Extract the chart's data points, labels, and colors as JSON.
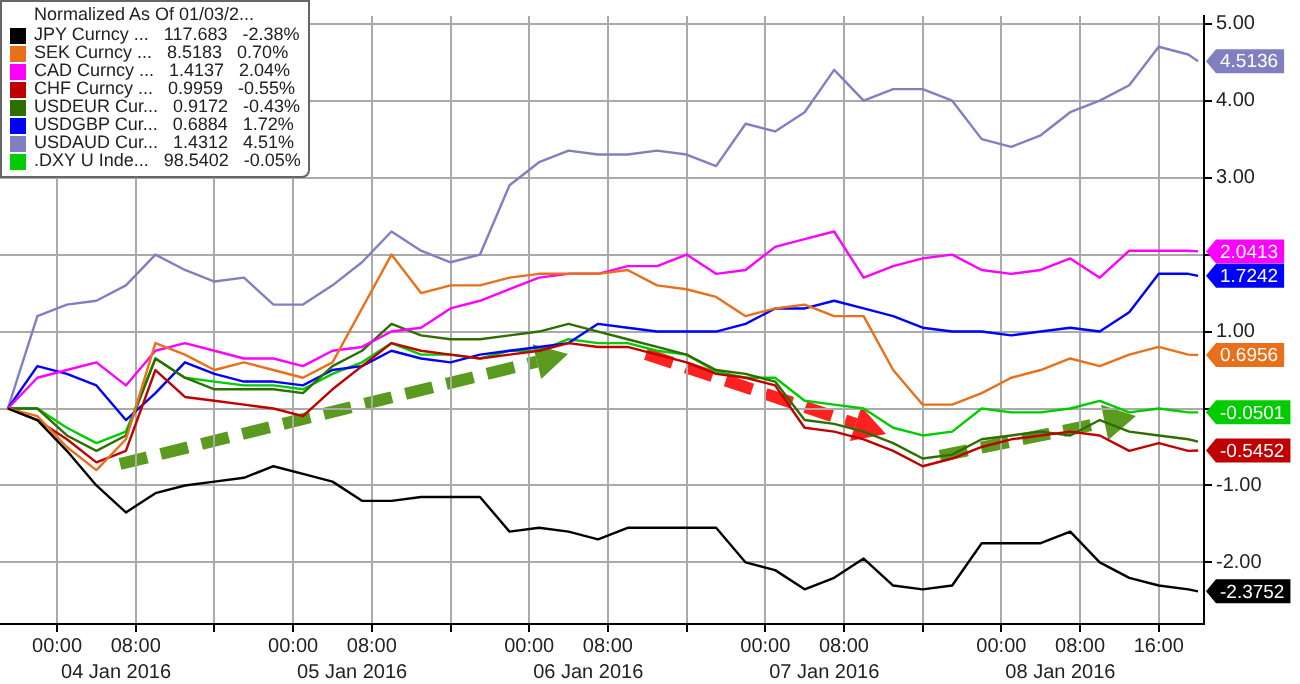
{
  "chart_data": {
    "type": "line",
    "legend_title": "Normalized As Of 01/03/2...",
    "legend": "top left",
    "grid": true,
    "marker": "none",
    "line_style": "solid",
    "x": [
      "2016-01-03T19:00",
      "2016-01-03T22:00",
      "2016-01-04T01:00",
      "2016-01-04T04:00",
      "2016-01-04T07:00",
      "2016-01-04T10:00",
      "2016-01-04T13:00",
      "2016-01-04T16:00",
      "2016-01-04T19:00",
      "2016-01-04T22:00",
      "2016-01-05T01:00",
      "2016-01-05T04:00",
      "2016-01-05T07:00",
      "2016-01-05T10:00",
      "2016-01-05T13:00",
      "2016-01-05T16:00",
      "2016-01-05T19:00",
      "2016-01-05T22:00",
      "2016-01-06T01:00",
      "2016-01-06T04:00",
      "2016-01-06T07:00",
      "2016-01-06T10:00",
      "2016-01-06T13:00",
      "2016-01-06T16:00",
      "2016-01-06T19:00",
      "2016-01-06T22:00",
      "2016-01-07T01:00",
      "2016-01-07T04:00",
      "2016-01-07T07:00",
      "2016-01-07T10:00",
      "2016-01-07T13:00",
      "2016-01-07T16:00",
      "2016-01-07T19:00",
      "2016-01-07T22:00",
      "2016-01-08T01:00",
      "2016-01-08T04:00",
      "2016-01-08T07:00",
      "2016-01-08T10:00",
      "2016-01-08T13:00",
      "2016-01-08T16:00",
      "2016-01-08T19:00",
      "2016-01-08T20:00"
    ],
    "xlim": [
      "2016-01-03T18:12",
      "2016-01-08T20:36"
    ],
    "xticks": [
      {
        "value": "2016-01-04T00:00",
        "label": "00:00"
      },
      {
        "value": "2016-01-04T08:00",
        "label": "08:00"
      },
      {
        "value": "2016-01-04T16:00",
        "label": null
      },
      {
        "value": "2016-01-05T00:00",
        "label": "00:00"
      },
      {
        "value": "2016-01-05T08:00",
        "label": "08:00"
      },
      {
        "value": "2016-01-05T16:00",
        "label": null
      },
      {
        "value": "2016-01-06T00:00",
        "label": "00:00"
      },
      {
        "value": "2016-01-06T08:00",
        "label": "08:00"
      },
      {
        "value": "2016-01-06T16:00",
        "label": null
      },
      {
        "value": "2016-01-07T00:00",
        "label": "00:00"
      },
      {
        "value": "2016-01-07T08:00",
        "label": "08:00"
      },
      {
        "value": "2016-01-07T16:00",
        "label": null
      },
      {
        "value": "2016-01-08T00:00",
        "label": "00:00"
      },
      {
        "value": "2016-01-08T08:00",
        "label": "08:00"
      },
      {
        "value": "2016-01-08T16:00",
        "label": "16:00"
      }
    ],
    "x2lim": [
      "2016-01-03T18:12",
      "2016-01-08T20:36"
    ],
    "x2ticks": [
      {
        "value": "2016-01-04T06:00",
        "label": "04 Jan 2016"
      },
      {
        "value": "2016-01-05T06:00",
        "label": "05 Jan 2016"
      },
      {
        "value": "2016-01-06T06:00",
        "label": "06 Jan 2016"
      },
      {
        "value": "2016-01-07T06:00",
        "label": "07 Jan 2016"
      },
      {
        "value": "2016-01-08T06:00",
        "label": "08 Jan 2016"
      }
    ],
    "ylim": [
      -2.8,
      5.1
    ],
    "yticks": [
      {
        "value": 5,
        "label": "5.00"
      },
      {
        "value": 4,
        "label": "4.00"
      },
      {
        "value": 3,
        "label": "3.00"
      },
      {
        "value": 2,
        "label": null
      },
      {
        "value": 1,
        "label": "1.00"
      },
      {
        "value": 0,
        "label": null
      },
      {
        "value": -1,
        "label": "-1.00"
      },
      {
        "value": -2,
        "label": "-2.00"
      }
    ],
    "series": [
      {
        "name": "JPY Curncy ...   117.683   -2.38%",
        "color": "#000000",
        "values": [
          0.0,
          -0.15,
          -0.55,
          -1.0,
          -1.35,
          -1.1,
          -1.0,
          -0.95,
          -0.9,
          -0.75,
          -0.85,
          -0.95,
          -1.2,
          -1.2,
          -1.15,
          -1.15,
          -1.15,
          -1.6,
          -1.55,
          -1.6,
          -1.7,
          -1.55,
          -1.55,
          -1.55,
          -1.55,
          -2.0,
          -2.1,
          -2.35,
          -2.2,
          -1.95,
          -2.3,
          -2.35,
          -2.3,
          -1.75,
          -1.75,
          -1.75,
          -1.6,
          -2.0,
          -2.2,
          -2.3,
          -2.35,
          -2.3752
        ],
        "value_labels": [
          null,
          null,
          null,
          null,
          null,
          null,
          null,
          null,
          null,
          null,
          null,
          null,
          null,
          null,
          null,
          null,
          null,
          null,
          null,
          null,
          null,
          null,
          null,
          null,
          null,
          null,
          null,
          null,
          null,
          null,
          null,
          null,
          null,
          null,
          null,
          null,
          null,
          null,
          null,
          null,
          null,
          "-2.3752"
        ]
      },
      {
        "name": "SEK Curncy ...   8.5183   0.70%",
        "color": "#e8701a",
        "values": [
          0.0,
          -0.1,
          -0.5,
          -0.8,
          -0.4,
          0.85,
          0.7,
          0.5,
          0.6,
          0.5,
          0.4,
          0.6,
          1.3,
          2.0,
          1.5,
          1.6,
          1.6,
          1.7,
          1.75,
          1.75,
          1.75,
          1.8,
          1.6,
          1.55,
          1.45,
          1.2,
          1.3,
          1.35,
          1.2,
          1.2,
          0.5,
          0.05,
          0.05,
          0.2,
          0.4,
          0.5,
          0.65,
          0.55,
          0.7,
          0.8,
          0.7,
          0.6956
        ],
        "value_labels": [
          null,
          null,
          null,
          null,
          null,
          null,
          null,
          null,
          null,
          null,
          null,
          null,
          null,
          null,
          null,
          null,
          null,
          null,
          null,
          null,
          null,
          null,
          null,
          null,
          null,
          null,
          null,
          null,
          null,
          null,
          null,
          null,
          null,
          null,
          null,
          null,
          null,
          null,
          null,
          null,
          null,
          "0.6956"
        ]
      },
      {
        "name": "CAD Curncy ...   1.4137   2.04%",
        "color": "#ff00ff",
        "values": [
          0.0,
          0.4,
          0.5,
          0.6,
          0.3,
          0.75,
          0.85,
          0.75,
          0.65,
          0.65,
          0.55,
          0.75,
          0.8,
          1.0,
          1.05,
          1.3,
          1.4,
          1.55,
          1.7,
          1.75,
          1.75,
          1.85,
          1.85,
          2.0,
          1.75,
          1.8,
          2.1,
          2.2,
          2.3,
          1.7,
          1.85,
          1.95,
          2.0,
          1.8,
          1.75,
          1.8,
          1.95,
          1.7,
          2.05,
          2.05,
          2.05,
          2.0413
        ],
        "value_labels": [
          null,
          null,
          null,
          null,
          null,
          null,
          null,
          null,
          null,
          null,
          null,
          null,
          null,
          null,
          null,
          null,
          null,
          null,
          null,
          null,
          null,
          null,
          null,
          null,
          null,
          null,
          null,
          null,
          null,
          null,
          null,
          null,
          null,
          null,
          null,
          null,
          null,
          null,
          null,
          null,
          null,
          "2.0413"
        ]
      },
      {
        "name": "CHF Curncy ...   0.9959   -0.55%",
        "color": "#c00000",
        "values": [
          0.0,
          -0.15,
          -0.4,
          -0.7,
          -0.55,
          0.5,
          0.15,
          0.1,
          0.05,
          0.0,
          -0.1,
          0.25,
          0.55,
          0.85,
          0.75,
          0.7,
          0.65,
          0.7,
          0.75,
          0.85,
          0.8,
          0.8,
          0.7,
          0.6,
          0.45,
          0.4,
          0.3,
          -0.25,
          -0.3,
          -0.4,
          -0.55,
          -0.75,
          -0.65,
          -0.5,
          -0.4,
          -0.35,
          -0.3,
          -0.35,
          -0.55,
          -0.45,
          -0.55,
          -0.5452
        ],
        "value_labels": [
          null,
          null,
          null,
          null,
          null,
          null,
          null,
          null,
          null,
          null,
          null,
          null,
          null,
          null,
          null,
          null,
          null,
          null,
          null,
          null,
          null,
          null,
          null,
          null,
          null,
          null,
          null,
          null,
          null,
          null,
          null,
          null,
          null,
          null,
          null,
          null,
          null,
          null,
          null,
          null,
          null,
          "-0.5452"
        ]
      },
      {
        "name": "USDEUR Cur...   0.9172   -0.43%",
        "color": "#2e6e00",
        "values": [
          0.0,
          0.0,
          -0.35,
          -0.55,
          -0.35,
          0.65,
          0.4,
          0.25,
          0.25,
          0.25,
          0.2,
          0.55,
          0.75,
          1.1,
          0.95,
          0.9,
          0.9,
          0.95,
          1.0,
          1.1,
          1.0,
          0.9,
          0.8,
          0.7,
          0.5,
          0.45,
          0.35,
          -0.15,
          -0.2,
          -0.3,
          -0.45,
          -0.65,
          -0.6,
          -0.4,
          -0.35,
          -0.3,
          -0.35,
          -0.15,
          -0.3,
          -0.35,
          -0.4,
          -0.43
        ]
      },
      {
        "name": "USDGBP Cur...   0.6884   1.72%",
        "color": "#0000ff",
        "values": [
          0.0,
          0.55,
          0.45,
          0.3,
          -0.15,
          0.2,
          0.6,
          0.45,
          0.35,
          0.35,
          0.3,
          0.5,
          0.55,
          0.75,
          0.65,
          0.6,
          0.7,
          0.75,
          0.8,
          0.85,
          1.1,
          1.05,
          1.0,
          1.0,
          1.0,
          1.1,
          1.3,
          1.3,
          1.4,
          1.3,
          1.2,
          1.05,
          1.0,
          1.0,
          0.95,
          1.0,
          1.05,
          1.0,
          1.25,
          1.75,
          1.75,
          1.7242
        ],
        "value_labels": [
          null,
          null,
          null,
          null,
          null,
          null,
          null,
          null,
          null,
          null,
          null,
          null,
          null,
          null,
          null,
          null,
          null,
          null,
          null,
          null,
          null,
          null,
          null,
          null,
          null,
          null,
          null,
          null,
          null,
          null,
          null,
          null,
          null,
          null,
          null,
          null,
          null,
          null,
          null,
          null,
          null,
          "1.7242"
        ]
      },
      {
        "name": "USDAUD Cur...   1.4312   4.51%",
        "color": "#8080c0",
        "values": [
          0.0,
          1.2,
          1.35,
          1.4,
          1.6,
          2.0,
          1.8,
          1.65,
          1.7,
          1.35,
          1.35,
          1.6,
          1.9,
          2.3,
          2.05,
          1.9,
          2.0,
          2.9,
          3.2,
          3.35,
          3.3,
          3.3,
          3.35,
          3.3,
          3.15,
          3.7,
          3.6,
          3.85,
          4.4,
          4.0,
          4.15,
          4.15,
          4.0,
          3.5,
          3.4,
          3.55,
          3.85,
          4.0,
          4.2,
          4.7,
          4.6,
          4.5136
        ],
        "value_labels": [
          null,
          null,
          null,
          null,
          null,
          null,
          null,
          null,
          null,
          null,
          null,
          null,
          null,
          null,
          null,
          null,
          null,
          null,
          null,
          null,
          null,
          null,
          null,
          null,
          null,
          null,
          null,
          null,
          null,
          null,
          null,
          null,
          null,
          null,
          null,
          null,
          null,
          null,
          null,
          null,
          null,
          "4.5136"
        ]
      },
      {
        "name": ".DXY U Inde...   98.5402   -0.05%",
        "color": "#00cc00",
        "values": [
          0.0,
          0.0,
          -0.25,
          -0.45,
          -0.3,
          0.65,
          0.4,
          0.35,
          0.3,
          0.3,
          0.25,
          0.45,
          0.6,
          0.85,
          0.7,
          0.7,
          0.65,
          0.75,
          0.75,
          0.9,
          0.85,
          0.85,
          0.75,
          0.7,
          0.48,
          0.4,
          0.4,
          0.1,
          0.05,
          0.0,
          -0.25,
          -0.35,
          -0.3,
          0.0,
          -0.05,
          -0.05,
          0.0,
          0.1,
          -0.05,
          0.0,
          -0.05,
          -0.0501
        ],
        "value_labels": [
          null,
          null,
          null,
          null,
          null,
          null,
          null,
          null,
          null,
          null,
          null,
          null,
          null,
          null,
          null,
          null,
          null,
          null,
          null,
          null,
          null,
          null,
          null,
          null,
          null,
          null,
          null,
          null,
          null,
          null,
          null,
          null,
          null,
          null,
          null,
          null,
          null,
          null,
          null,
          null,
          null,
          "-0.0501"
        ]
      }
    ]
  }
}
